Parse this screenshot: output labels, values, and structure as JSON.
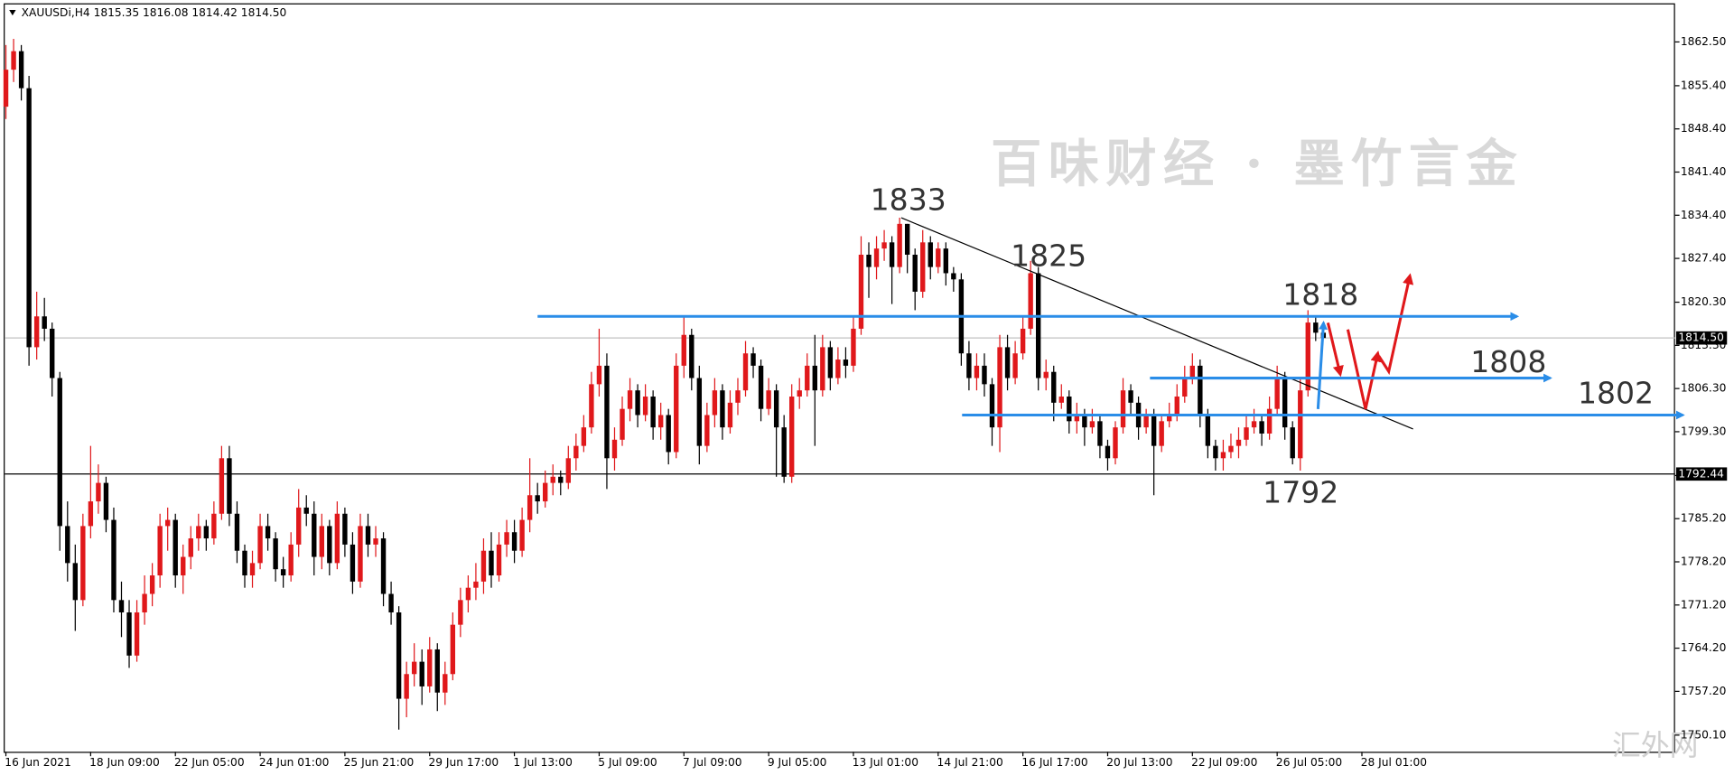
{
  "chart_data": {
    "type": "candlestick",
    "header": "XAUUSDi,H4  1815.35 1816.08 1814.42 1814.50",
    "watermark": "百味财经 · 墨竹言金",
    "corner_mark": "汇外网",
    "up_color": "#e0181b",
    "down_color": "#000000",
    "ylim": [
      1747.4,
      1869.3
    ],
    "yticks": [
      {
        "value": 1862.5,
        "label": "1862.50"
      },
      {
        "value": 1855.4,
        "label": "1855.40"
      },
      {
        "value": 1848.4,
        "label": "1848.40"
      },
      {
        "value": 1841.4,
        "label": "1841.40"
      },
      {
        "value": 1834.4,
        "label": "1834.40"
      },
      {
        "value": 1827.4,
        "label": "1827.40"
      },
      {
        "value": 1820.3,
        "label": "1820.30"
      },
      {
        "value": 1813.3,
        "label": "1813.30"
      },
      {
        "value": 1806.3,
        "label": "1806.30"
      },
      {
        "value": 1799.3,
        "label": "1799.30"
      },
      {
        "value": 1792.2,
        "label": "1792.20"
      },
      {
        "value": 1785.2,
        "label": "1785.20"
      },
      {
        "value": 1778.2,
        "label": "1778.20"
      },
      {
        "value": 1771.2,
        "label": "1771.20"
      },
      {
        "value": 1764.2,
        "label": "1764.20"
      },
      {
        "value": 1757.2,
        "label": "1757.20"
      },
      {
        "value": 1750.1,
        "label": "1750.10"
      }
    ],
    "xticks": [
      {
        "value": 0,
        "label": "16 Jun 2021"
      },
      {
        "value": 11,
        "label": "18 Jun 09:00"
      },
      {
        "value": 22,
        "label": "22 Jun 05:00"
      },
      {
        "value": 33,
        "label": "24 Jun 01:00"
      },
      {
        "value": 44,
        "label": "25 Jun 21:00"
      },
      {
        "value": 55,
        "label": "29 Jun 17:00"
      },
      {
        "value": 66,
        "label": "1 Jul 13:00"
      },
      {
        "value": 77,
        "label": "5 Jul 09:00"
      },
      {
        "value": 88,
        "label": "7 Jul 09:00"
      },
      {
        "value": 99,
        "label": "9 Jul 05:00"
      },
      {
        "value": 110,
        "label": "13 Jul 01:00"
      },
      {
        "value": 121,
        "label": "14 Jul 21:00"
      },
      {
        "value": 132,
        "label": "16 Jul 17:00"
      },
      {
        "value": 143,
        "label": "20 Jul 13:00"
      },
      {
        "value": 154,
        "label": "22 Jul 09:00"
      },
      {
        "value": 165,
        "label": "26 Jul 05:00"
      },
      {
        "value": 176,
        "label": "28 Jul 01:00"
      }
    ],
    "price_lines": [
      {
        "value": 1814.5,
        "label": "1814.50",
        "color": "#c0c0c0"
      },
      {
        "value": 1792.44,
        "label": "1792.44",
        "color": "#000000"
      }
    ],
    "levels": [
      1833,
      1825,
      1818,
      1808,
      1802,
      1792
    ],
    "candles": [
      [
        1852,
        1862,
        1850,
        1858
      ],
      [
        1858,
        1863,
        1856,
        1861
      ],
      [
        1861,
        1862,
        1853,
        1855
      ],
      [
        1855,
        1857,
        1810,
        1813
      ],
      [
        1813,
        1822,
        1811,
        1818
      ],
      [
        1818,
        1821,
        1814,
        1816
      ],
      [
        1816,
        1817,
        1805,
        1808
      ],
      [
        1808,
        1809,
        1780,
        1784
      ],
      [
        1784,
        1788,
        1775,
        1778
      ],
      [
        1778,
        1781,
        1767,
        1772
      ],
      [
        1772,
        1786,
        1771,
        1784
      ],
      [
        1784,
        1797,
        1782,
        1788
      ],
      [
        1788,
        1794,
        1786,
        1791
      ],
      [
        1791,
        1792,
        1783,
        1785
      ],
      [
        1785,
        1787,
        1770,
        1772
      ],
      [
        1772,
        1775,
        1766,
        1770
      ],
      [
        1770,
        1772,
        1761,
        1763
      ],
      [
        1763,
        1772,
        1762,
        1770
      ],
      [
        1770,
        1776,
        1768,
        1773
      ],
      [
        1773,
        1778,
        1771,
        1776
      ],
      [
        1776,
        1786,
        1774,
        1784
      ],
      [
        1784,
        1787,
        1780,
        1785
      ],
      [
        1785,
        1786,
        1774,
        1776
      ],
      [
        1776,
        1781,
        1773,
        1779
      ],
      [
        1779,
        1784,
        1777,
        1782
      ],
      [
        1782,
        1786,
        1780,
        1784
      ],
      [
        1784,
        1785,
        1780,
        1782
      ],
      [
        1782,
        1788,
        1781,
        1786
      ],
      [
        1786,
        1797,
        1785,
        1795
      ],
      [
        1795,
        1797,
        1784,
        1786
      ],
      [
        1786,
        1788,
        1778,
        1780
      ],
      [
        1780,
        1781,
        1774,
        1776
      ],
      [
        1776,
        1780,
        1774,
        1778
      ],
      [
        1778,
        1786,
        1777,
        1784
      ],
      [
        1784,
        1786,
        1780,
        1782
      ],
      [
        1782,
        1783,
        1775,
        1777
      ],
      [
        1777,
        1779,
        1774,
        1776
      ],
      [
        1776,
        1783,
        1775,
        1781
      ],
      [
        1781,
        1790,
        1779,
        1787
      ],
      [
        1787,
        1789,
        1784,
        1786
      ],
      [
        1786,
        1788,
        1776,
        1779
      ],
      [
        1779,
        1786,
        1777,
        1784
      ],
      [
        1784,
        1785,
        1776,
        1778
      ],
      [
        1778,
        1788,
        1777,
        1786
      ],
      [
        1786,
        1787,
        1779,
        1781
      ],
      [
        1781,
        1783,
        1773,
        1775
      ],
      [
        1775,
        1786,
        1774,
        1784
      ],
      [
        1784,
        1786,
        1779,
        1781
      ],
      [
        1781,
        1784,
        1779,
        1782
      ],
      [
        1782,
        1783,
        1771,
        1773
      ],
      [
        1773,
        1775,
        1768,
        1770
      ],
      [
        1770,
        1771,
        1751,
        1756
      ],
      [
        1756,
        1762,
        1753,
        1760
      ],
      [
        1760,
        1765,
        1758,
        1762
      ],
      [
        1762,
        1764,
        1755,
        1758
      ],
      [
        1758,
        1766,
        1757,
        1764
      ],
      [
        1764,
        1765,
        1754,
        1757
      ],
      [
        1757,
        1762,
        1755,
        1760
      ],
      [
        1760,
        1770,
        1759,
        1768
      ],
      [
        1768,
        1774,
        1766,
        1772
      ],
      [
        1772,
        1776,
        1770,
        1774
      ],
      [
        1774,
        1778,
        1772,
        1775
      ],
      [
        1775,
        1782,
        1773,
        1780
      ],
      [
        1780,
        1783,
        1774,
        1776
      ],
      [
        1776,
        1783,
        1775,
        1781
      ],
      [
        1781,
        1785,
        1779,
        1783
      ],
      [
        1783,
        1785,
        1778,
        1780
      ],
      [
        1780,
        1787,
        1779,
        1785
      ],
      [
        1785,
        1795,
        1783,
        1789
      ],
      [
        1789,
        1791,
        1786,
        1788
      ],
      [
        1788,
        1793,
        1787,
        1791
      ],
      [
        1791,
        1794,
        1789,
        1792
      ],
      [
        1792,
        1793,
        1789,
        1791
      ],
      [
        1791,
        1797,
        1790,
        1795
      ],
      [
        1795,
        1799,
        1793,
        1797
      ],
      [
        1797,
        1802,
        1796,
        1800
      ],
      [
        1800,
        1809,
        1799,
        1807
      ],
      [
        1807,
        1816,
        1805,
        1810
      ],
      [
        1810,
        1812,
        1790,
        1795
      ],
      [
        1795,
        1800,
        1793,
        1798
      ],
      [
        1798,
        1805,
        1797,
        1803
      ],
      [
        1803,
        1808,
        1801,
        1806
      ],
      [
        1806,
        1807,
        1800,
        1802
      ],
      [
        1802,
        1807,
        1801,
        1805
      ],
      [
        1805,
        1806,
        1798,
        1800
      ],
      [
        1800,
        1804,
        1798,
        1802
      ],
      [
        1802,
        1803,
        1794,
        1796
      ],
      [
        1796,
        1812,
        1795,
        1810
      ],
      [
        1810,
        1818,
        1808,
        1815
      ],
      [
        1815,
        1816,
        1806,
        1808
      ],
      [
        1808,
        1810,
        1794,
        1797
      ],
      [
        1797,
        1804,
        1796,
        1802
      ],
      [
        1802,
        1808,
        1800,
        1806
      ],
      [
        1806,
        1807,
        1798,
        1800
      ],
      [
        1800,
        1806,
        1799,
        1804
      ],
      [
        1804,
        1808,
        1802,
        1806
      ],
      [
        1806,
        1814,
        1805,
        1812
      ],
      [
        1812,
        1813,
        1808,
        1810
      ],
      [
        1810,
        1811,
        1801,
        1803
      ],
      [
        1803,
        1808,
        1802,
        1806
      ],
      [
        1806,
        1807,
        1792,
        1800
      ],
      [
        1800,
        1802,
        1791,
        1792
      ],
      [
        1792,
        1807,
        1791,
        1805
      ],
      [
        1805,
        1808,
        1803,
        1806
      ],
      [
        1806,
        1812,
        1805,
        1810
      ],
      [
        1810,
        1815,
        1797,
        1806
      ],
      [
        1806,
        1815,
        1805,
        1813
      ],
      [
        1813,
        1814,
        1806,
        1808
      ],
      [
        1808,
        1813,
        1807,
        1811
      ],
      [
        1811,
        1813,
        1808,
        1810
      ],
      [
        1810,
        1818,
        1809,
        1816
      ],
      [
        1816,
        1831,
        1815,
        1828
      ],
      [
        1828,
        1830,
        1821,
        1826
      ],
      [
        1826,
        1831,
        1824,
        1829
      ],
      [
        1829,
        1832,
        1827,
        1830
      ],
      [
        1830,
        1831,
        1820,
        1826
      ],
      [
        1826,
        1834,
        1825,
        1833
      ],
      [
        1833,
        1833,
        1825,
        1828
      ],
      [
        1828,
        1829,
        1819,
        1822
      ],
      [
        1822,
        1832,
        1821,
        1830
      ],
      [
        1830,
        1831,
        1824,
        1826
      ],
      [
        1826,
        1830,
        1825,
        1829
      ],
      [
        1829,
        1830,
        1823,
        1825
      ],
      [
        1825,
        1826,
        1822,
        1824
      ],
      [
        1824,
        1825,
        1810,
        1812
      ],
      [
        1812,
        1814,
        1806,
        1808
      ],
      [
        1808,
        1812,
        1806,
        1810
      ],
      [
        1810,
        1812,
        1805,
        1807
      ],
      [
        1807,
        1808,
        1797,
        1800
      ],
      [
        1800,
        1815,
        1796,
        1813
      ],
      [
        1813,
        1815,
        1806,
        1808
      ],
      [
        1808,
        1814,
        1807,
        1812
      ],
      [
        1812,
        1818,
        1811,
        1816
      ],
      [
        1816,
        1827,
        1815,
        1825
      ],
      [
        1825,
        1826,
        1806,
        1808
      ],
      [
        1808,
        1811,
        1806,
        1809
      ],
      [
        1809,
        1810,
        1801,
        1804
      ],
      [
        1804,
        1807,
        1803,
        1805
      ],
      [
        1805,
        1806,
        1799,
        1801
      ],
      [
        1801,
        1804,
        1799,
        1802
      ],
      [
        1802,
        1803,
        1797,
        1800
      ],
      [
        1800,
        1803,
        1799,
        1801
      ],
      [
        1801,
        1802,
        1795,
        1797
      ],
      [
        1797,
        1798,
        1793,
        1795
      ],
      [
        1795,
        1801,
        1794,
        1800
      ],
      [
        1800,
        1808,
        1799,
        1806
      ],
      [
        1806,
        1807,
        1802,
        1804
      ],
      [
        1804,
        1805,
        1798,
        1800
      ],
      [
        1800,
        1803,
        1799,
        1802
      ],
      [
        1802,
        1803,
        1789,
        1797
      ],
      [
        1797,
        1802,
        1796,
        1801
      ],
      [
        1801,
        1804,
        1800,
        1802
      ],
      [
        1802,
        1807,
        1801,
        1805
      ],
      [
        1805,
        1810,
        1804,
        1808
      ],
      [
        1808,
        1812,
        1807,
        1810
      ],
      [
        1810,
        1811,
        1800,
        1802
      ],
      [
        1802,
        1803,
        1795,
        1797
      ],
      [
        1797,
        1798,
        1793,
        1795
      ],
      [
        1795,
        1798,
        1793,
        1796
      ],
      [
        1796,
        1799,
        1795,
        1797
      ],
      [
        1797,
        1800,
        1795,
        1798
      ],
      [
        1798,
        1802,
        1797,
        1800
      ],
      [
        1800,
        1803,
        1799,
        1801
      ],
      [
        1801,
        1802,
        1797,
        1799
      ],
      [
        1799,
        1805,
        1798,
        1803
      ],
      [
        1803,
        1810,
        1802,
        1808
      ],
      [
        1808,
        1809,
        1798,
        1800
      ],
      [
        1800,
        1801,
        1794,
        1795
      ],
      [
        1795,
        1808,
        1793,
        1806
      ],
      [
        1806,
        1819,
        1805,
        1817
      ],
      [
        1817,
        1818,
        1814,
        1815.35
      ],
      [
        1815.35,
        1816.08,
        1814.42,
        1814.5
      ]
    ]
  }
}
